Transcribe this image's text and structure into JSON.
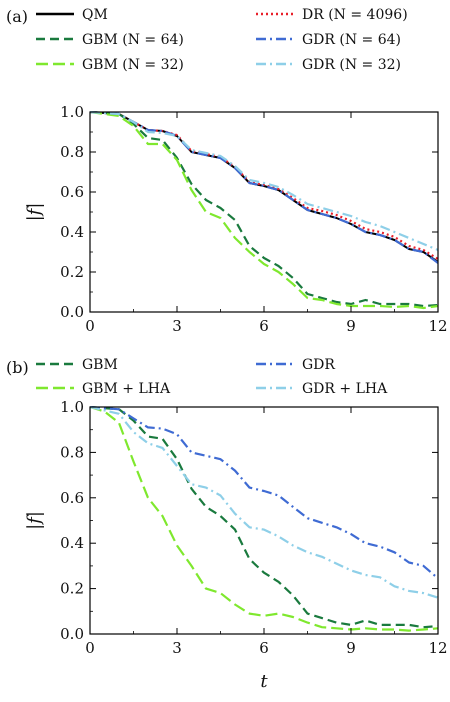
{
  "chart_data": [
    {
      "type": "line",
      "panel_label": "(a)",
      "xlabel": "",
      "ylabel": "|f|",
      "xlim": [
        0,
        12
      ],
      "ylim": [
        0,
        1
      ],
      "xticks": [
        0,
        3,
        6,
        9,
        12
      ],
      "yticks": [
        0.0,
        0.2,
        0.4,
        0.6,
        0.8,
        1.0
      ],
      "ytick_labels": [
        "0.0",
        "0.2",
        "0.4",
        "0.6",
        "0.8",
        "1.0"
      ],
      "legend": "top",
      "series": [
        {
          "name": "QM",
          "color": "#000000",
          "dash": "solid",
          "x": [
            0,
            1,
            1.5,
            2,
            2.5,
            3,
            3.5,
            4,
            4.5,
            5,
            5.5,
            6,
            6.5,
            7,
            7.5,
            8,
            8.5,
            9,
            9.5,
            10,
            10.5,
            11,
            11.5,
            12
          ],
          "y": [
            1.0,
            0.99,
            0.95,
            0.91,
            0.905,
            0.88,
            0.8,
            0.785,
            0.77,
            0.72,
            0.645,
            0.63,
            0.61,
            0.56,
            0.51,
            0.49,
            0.47,
            0.44,
            0.4,
            0.385,
            0.36,
            0.315,
            0.3,
            0.25
          ]
        },
        {
          "name": "DR (N = 4096)",
          "color": "#e8202a",
          "dash": "dotted",
          "x": [
            0,
            1,
            1.5,
            2,
            2.5,
            3,
            3.5,
            4,
            4.5,
            5,
            5.5,
            6,
            6.5,
            7,
            7.5,
            8,
            8.5,
            9,
            9.5,
            10,
            10.5,
            11,
            11.5,
            12
          ],
          "y": [
            1.0,
            0.99,
            0.95,
            0.91,
            0.905,
            0.885,
            0.805,
            0.79,
            0.775,
            0.725,
            0.65,
            0.635,
            0.615,
            0.57,
            0.52,
            0.505,
            0.485,
            0.455,
            0.415,
            0.4,
            0.375,
            0.33,
            0.31,
            0.265
          ]
        },
        {
          "name": "GBM (N = 64)",
          "color": "#1a7a3e",
          "dash": "dashed",
          "x": [
            0,
            1,
            1.5,
            2,
            2.5,
            3,
            3.5,
            4,
            4.5,
            5,
            5.5,
            6,
            6.5,
            7,
            7.5,
            8,
            8.5,
            9,
            9.5,
            10,
            10.5,
            11,
            11.5,
            12
          ],
          "y": [
            1.0,
            0.99,
            0.94,
            0.87,
            0.86,
            0.77,
            0.64,
            0.56,
            0.52,
            0.46,
            0.33,
            0.27,
            0.23,
            0.17,
            0.09,
            0.07,
            0.05,
            0.04,
            0.06,
            0.04,
            0.04,
            0.04,
            0.03,
            0.035
          ]
        },
        {
          "name": "GBM (N = 32)",
          "color": "#7fe82e",
          "dash": "longdash",
          "x": [
            0,
            1,
            1.5,
            2,
            2.5,
            3,
            3.5,
            4,
            4.5,
            5,
            5.5,
            6,
            6.5,
            7,
            7.5,
            8,
            8.5,
            9,
            9.5,
            10,
            10.5,
            11,
            11.5,
            12
          ],
          "y": [
            1.0,
            0.98,
            0.93,
            0.84,
            0.84,
            0.76,
            0.61,
            0.5,
            0.47,
            0.37,
            0.3,
            0.24,
            0.2,
            0.14,
            0.07,
            0.06,
            0.04,
            0.03,
            0.03,
            0.03,
            0.025,
            0.03,
            0.02,
            0.03
          ]
        },
        {
          "name": "GDR (N = 64)",
          "color": "#3f6bd3",
          "dash": "dashdot",
          "x": [
            0,
            1,
            1.5,
            2,
            2.5,
            3,
            3.5,
            4,
            4.5,
            5,
            5.5,
            6,
            6.5,
            7,
            7.5,
            8,
            8.5,
            9,
            9.5,
            10,
            10.5,
            11,
            11.5,
            12
          ],
          "y": [
            1.0,
            0.99,
            0.95,
            0.91,
            0.905,
            0.88,
            0.8,
            0.785,
            0.77,
            0.72,
            0.645,
            0.63,
            0.61,
            0.56,
            0.51,
            0.49,
            0.47,
            0.44,
            0.4,
            0.385,
            0.36,
            0.315,
            0.3,
            0.245
          ]
        },
        {
          "name": "GDR (N = 32)",
          "color": "#8ecfe8",
          "dash": "dashdot",
          "x": [
            0,
            1,
            1.5,
            2,
            2.5,
            3,
            3.5,
            4,
            4.5,
            5,
            5.5,
            6,
            6.5,
            7,
            7.5,
            8,
            8.5,
            9,
            9.5,
            10,
            10.5,
            11,
            11.5,
            12
          ],
          "y": [
            1.0,
            0.99,
            0.95,
            0.9,
            0.895,
            0.88,
            0.81,
            0.795,
            0.78,
            0.73,
            0.66,
            0.645,
            0.625,
            0.585,
            0.54,
            0.52,
            0.5,
            0.48,
            0.45,
            0.43,
            0.4,
            0.37,
            0.34,
            0.31
          ]
        }
      ]
    },
    {
      "type": "line",
      "panel_label": "(b)",
      "xlabel": "t",
      "ylabel": "|f|",
      "xlim": [
        0,
        12
      ],
      "ylim": [
        0,
        1
      ],
      "xticks": [
        0,
        3,
        6,
        9,
        12
      ],
      "yticks": [
        0.0,
        0.2,
        0.4,
        0.6,
        0.8,
        1.0
      ],
      "ytick_labels": [
        "0.0",
        "0.2",
        "0.4",
        "0.6",
        "0.8",
        "1.0"
      ],
      "legend": "top",
      "series": [
        {
          "name": "GBM",
          "color": "#1a7a3e",
          "dash": "dashed",
          "x": [
            0,
            1,
            1.5,
            2,
            2.5,
            3,
            3.5,
            4,
            4.5,
            5,
            5.5,
            6,
            6.5,
            7,
            7.5,
            8,
            8.5,
            9,
            9.5,
            10,
            10.5,
            11,
            11.5,
            12
          ],
          "y": [
            1.0,
            0.99,
            0.94,
            0.87,
            0.86,
            0.77,
            0.64,
            0.56,
            0.52,
            0.46,
            0.33,
            0.27,
            0.23,
            0.17,
            0.09,
            0.07,
            0.05,
            0.04,
            0.06,
            0.04,
            0.04,
            0.04,
            0.03,
            0.035
          ]
        },
        {
          "name": "GBM + LHA",
          "color": "#7fe82e",
          "dash": "longdash",
          "x": [
            0,
            0.5,
            1,
            1.5,
            2,
            2.5,
            3,
            3.5,
            4,
            4.5,
            5,
            5.5,
            6,
            6.5,
            7,
            7.5,
            8,
            8.5,
            9,
            9.5,
            10,
            10.5,
            11,
            11.5,
            12
          ],
          "y": [
            1.0,
            0.98,
            0.93,
            0.76,
            0.6,
            0.52,
            0.39,
            0.3,
            0.2,
            0.18,
            0.13,
            0.09,
            0.08,
            0.09,
            0.075,
            0.05,
            0.03,
            0.025,
            0.02,
            0.025,
            0.02,
            0.02,
            0.015,
            0.02,
            0.025
          ]
        },
        {
          "name": "GDR",
          "color": "#3f6bd3",
          "dash": "dashdot",
          "x": [
            0,
            1,
            1.5,
            2,
            2.5,
            3,
            3.5,
            4,
            4.5,
            5,
            5.5,
            6,
            6.5,
            7,
            7.5,
            8,
            8.5,
            9,
            9.5,
            10,
            10.5,
            11,
            11.5,
            12
          ],
          "y": [
            1.0,
            0.99,
            0.95,
            0.91,
            0.905,
            0.88,
            0.8,
            0.785,
            0.77,
            0.72,
            0.645,
            0.63,
            0.61,
            0.56,
            0.51,
            0.49,
            0.47,
            0.44,
            0.4,
            0.385,
            0.36,
            0.315,
            0.3,
            0.245
          ]
        },
        {
          "name": "GDR + LHA",
          "color": "#8ecfe8",
          "dash": "dashdot",
          "x": [
            0,
            1,
            1.5,
            2,
            2.5,
            3,
            3.5,
            4,
            4.5,
            5,
            5.5,
            6,
            6.5,
            7,
            7.5,
            8,
            8.5,
            9,
            9.5,
            10,
            10.5,
            11,
            11.5,
            12
          ],
          "y": [
            1.0,
            0.97,
            0.89,
            0.84,
            0.82,
            0.74,
            0.66,
            0.645,
            0.61,
            0.53,
            0.47,
            0.46,
            0.43,
            0.39,
            0.36,
            0.34,
            0.31,
            0.28,
            0.26,
            0.25,
            0.21,
            0.19,
            0.18,
            0.16
          ]
        }
      ]
    }
  ]
}
